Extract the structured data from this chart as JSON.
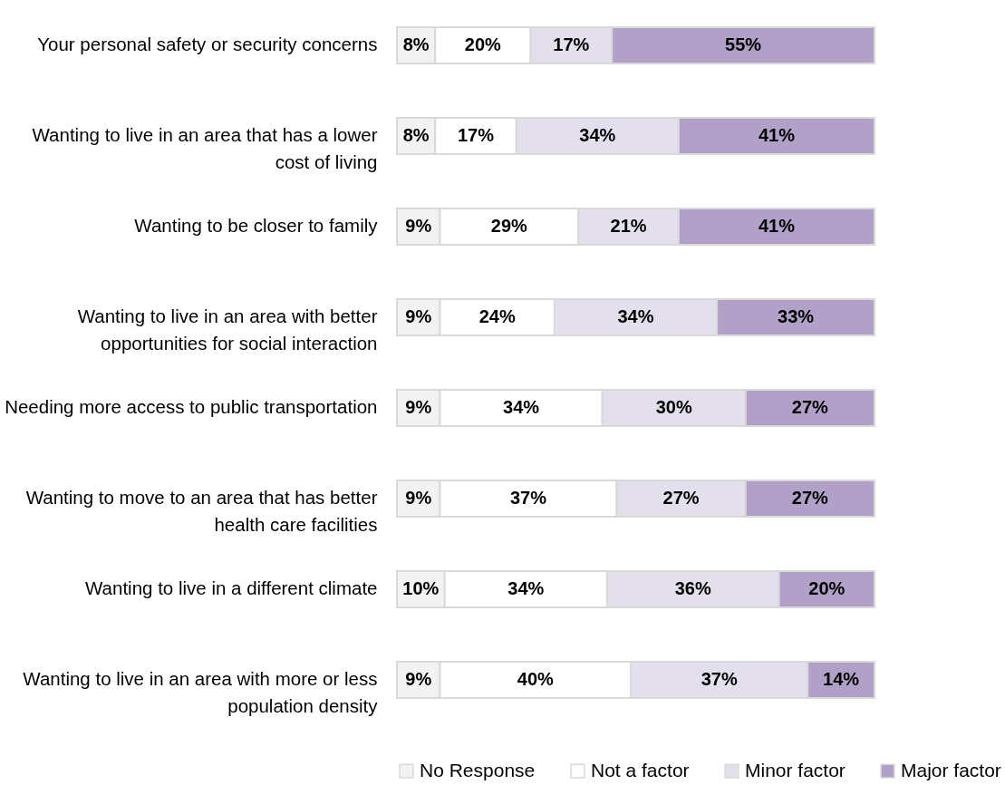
{
  "chart_data": {
    "type": "bar",
    "orientation": "horizontal",
    "stacked": true,
    "legend": "bottom",
    "tick_labels": "y",
    "xlim": [
      0,
      100
    ],
    "categories": [
      "Your personal safety or security concerns",
      "Wanting to live in an area that has a lower cost of living",
      "Wanting to be closer to family",
      "Wanting to live in an area with better opportunities for social interaction",
      "Needing more access to public transportation",
      "Wanting to move to an area that has better health care facilities",
      "Wanting to live in a different climate",
      "Wanting to live in an area with more or less population density"
    ],
    "series": [
      {
        "name": "No Response",
        "color": "#f2f2f2",
        "values": [
          8,
          8,
          9,
          9,
          9,
          9,
          10,
          9
        ],
        "value_labels": [
          "8%",
          "8%",
          "9%",
          "9%",
          "9%",
          "9%",
          "10%",
          "9%"
        ]
      },
      {
        "name": "Not a factor",
        "color": "#ffffff",
        "values": [
          20,
          17,
          29,
          24,
          34,
          37,
          34,
          40
        ],
        "value_labels": [
          "20%",
          "17%",
          "29%",
          "24%",
          "34%",
          "37%",
          "34%",
          "40%"
        ]
      },
      {
        "name": "Minor factor",
        "color": "#e4dfec",
        "values": [
          17,
          34,
          21,
          34,
          30,
          27,
          36,
          37
        ],
        "value_labels": [
          "17%",
          "34%",
          "21%",
          "34%",
          "30%",
          "27%",
          "36%",
          "37%"
        ]
      },
      {
        "name": "Major factor",
        "color": "#b1a0c7",
        "values": [
          55,
          41,
          41,
          33,
          27,
          27,
          20,
          14
        ],
        "value_labels": [
          "55%",
          "41%",
          "41%",
          "33%",
          "27%",
          "27%",
          "20%",
          "14%"
        ]
      }
    ]
  }
}
